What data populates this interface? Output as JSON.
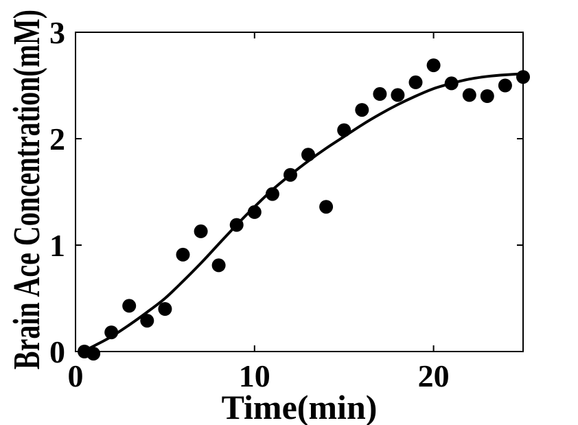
{
  "figure": {
    "background": "#ffffff",
    "foreground": "#000000"
  },
  "chart_data": {
    "type": "scatter",
    "title": "",
    "xlabel": "Time(min)",
    "ylabel": "Brain Ace Concentration(mM)",
    "xlim": [
      0,
      25
    ],
    "ylim": [
      0,
      3
    ],
    "x_ticks": [
      0,
      10,
      20
    ],
    "y_ticks": [
      0,
      1,
      2,
      3
    ],
    "grid": false,
    "legend": "none",
    "box": true,
    "tick_direction": "in",
    "axis_color": "#000000",
    "background": "#ffffff",
    "series": [
      {
        "name": "brain-ace-measurements",
        "type": "scatter",
        "marker": "filled-circle",
        "marker_radius": 10,
        "color": "#000000",
        "points": [
          [
            0.5,
            0.0
          ],
          [
            1,
            -0.02
          ],
          [
            2,
            0.18
          ],
          [
            3,
            0.43
          ],
          [
            4,
            0.29
          ],
          [
            5,
            0.4
          ],
          [
            6,
            0.91
          ],
          [
            7,
            1.13
          ],
          [
            8,
            0.81
          ],
          [
            9,
            1.19
          ],
          [
            10,
            1.31
          ],
          [
            11,
            1.48
          ],
          [
            12,
            1.66
          ],
          [
            13,
            1.85
          ],
          [
            14,
            1.36
          ],
          [
            15,
            2.08
          ],
          [
            16,
            2.27
          ],
          [
            17,
            2.42
          ],
          [
            18,
            2.41
          ],
          [
            19,
            2.53
          ],
          [
            20,
            2.69
          ],
          [
            21,
            2.52
          ],
          [
            22,
            2.41
          ],
          [
            23,
            2.4
          ],
          [
            24,
            2.5
          ],
          [
            25,
            2.58
          ]
        ]
      },
      {
        "name": "sigmoid-fit-curve",
        "type": "line",
        "color": "#000000",
        "width": 4,
        "points": [
          [
            0.4,
            0.0
          ],
          [
            1,
            0.05
          ],
          [
            2,
            0.14
          ],
          [
            3,
            0.25
          ],
          [
            4,
            0.37
          ],
          [
            5,
            0.5
          ],
          [
            6,
            0.66
          ],
          [
            7,
            0.83
          ],
          [
            8,
            1.01
          ],
          [
            9,
            1.19
          ],
          [
            10,
            1.36
          ],
          [
            11,
            1.52
          ],
          [
            12,
            1.66
          ],
          [
            13,
            1.79
          ],
          [
            14,
            1.91
          ],
          [
            15,
            2.02
          ],
          [
            16,
            2.13
          ],
          [
            17,
            2.23
          ],
          [
            18,
            2.32
          ],
          [
            19,
            2.4
          ],
          [
            20,
            2.47
          ],
          [
            21,
            2.52
          ],
          [
            22,
            2.56
          ],
          [
            23,
            2.585
          ],
          [
            24,
            2.6
          ],
          [
            25,
            2.61
          ]
        ]
      }
    ]
  }
}
